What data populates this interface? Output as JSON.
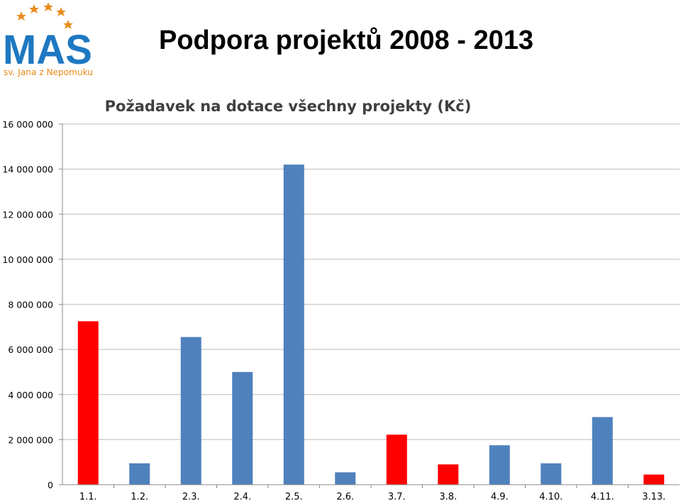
{
  "header": {
    "logo_text": "MAS",
    "logo_subtitle": "sv. Jana z Nepomuku",
    "title": "Podpora projektů 2008 - 2013"
  },
  "colors": {
    "blue": "#4f81bd",
    "red": "#ff0000",
    "logo_blue": "#1e78c2",
    "logo_orange": "#e98a1a"
  },
  "chart_data": {
    "type": "bar",
    "title": "Požadavek na dotace všechny projekty (Kč)",
    "categories": [
      "1.1.",
      "1.2.",
      "2.3.",
      "2.4.",
      "2.5.",
      "2.6.",
      "3.7.",
      "3.8.",
      "4.9.",
      "4.10.",
      "4.11.",
      "3.13."
    ],
    "values": [
      7250000,
      950000,
      6550000,
      5000000,
      14200000,
      550000,
      2220000,
      900000,
      1750000,
      950000,
      3000000,
      450000
    ],
    "bar_colors": [
      "#ff0000",
      "#4f81bd",
      "#4f81bd",
      "#4f81bd",
      "#4f81bd",
      "#4f81bd",
      "#ff0000",
      "#ff0000",
      "#4f81bd",
      "#4f81bd",
      "#4f81bd",
      "#ff0000"
    ],
    "ylim": [
      0,
      16000000
    ],
    "yticks": [
      0,
      2000000,
      4000000,
      6000000,
      8000000,
      10000000,
      12000000,
      14000000,
      16000000
    ],
    "ytick_labels": [
      "0",
      "2 000 000",
      "4 000 000",
      "6 000 000",
      "8 000 000",
      "10 000 000",
      "12 000 000",
      "14 000 000",
      "16 000 000"
    ],
    "grid": true,
    "legend": "none"
  }
}
